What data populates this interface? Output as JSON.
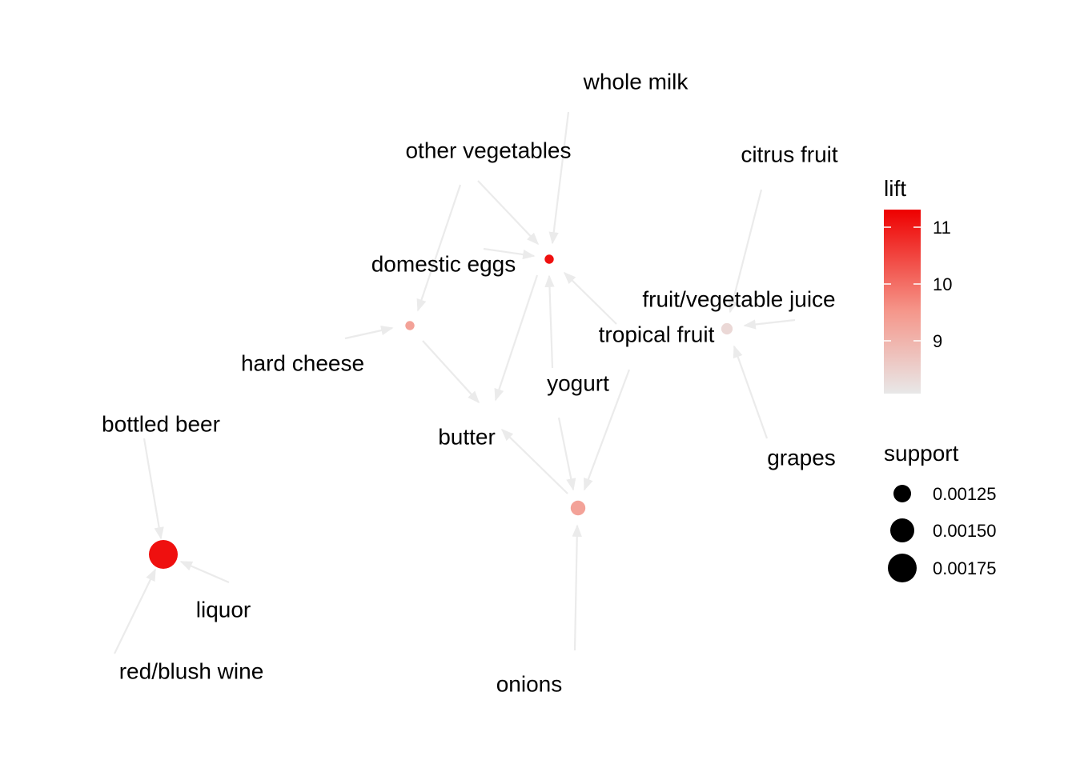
{
  "colors": {
    "background": "#ffffff",
    "edge": "#ebebeb",
    "lift_low": "#e8e8e8",
    "lift_high": "#ee0000",
    "label": "#000000"
  },
  "legend": {
    "lift_title": "lift",
    "lift_ticks": [
      "11",
      "10",
      "9"
    ],
    "support_title": "support",
    "support_ticks": [
      "0.00125",
      "0.00150",
      "0.00175"
    ]
  },
  "items": [
    {
      "id": "whole_milk",
      "label": "whole milk"
    },
    {
      "id": "other_vegetables",
      "label": "other vegetables"
    },
    {
      "id": "citrus_fruit",
      "label": "citrus fruit"
    },
    {
      "id": "domestic_eggs",
      "label": "domestic eggs"
    },
    {
      "id": "fruit_vegetable_juice",
      "label": "fruit/vegetable juice"
    },
    {
      "id": "tropical_fruit",
      "label": "tropical fruit"
    },
    {
      "id": "hard_cheese",
      "label": "hard cheese"
    },
    {
      "id": "yogurt",
      "label": "yogurt"
    },
    {
      "id": "bottled_beer",
      "label": "bottled beer"
    },
    {
      "id": "butter",
      "label": "butter"
    },
    {
      "id": "grapes",
      "label": "grapes"
    },
    {
      "id": "liquor",
      "label": "liquor"
    },
    {
      "id": "red_blush_wine",
      "label": "red/blush wine"
    },
    {
      "id": "onions",
      "label": "onions"
    }
  ],
  "rules": [
    {
      "id": "r1",
      "lhs": [
        "whole_milk",
        "other_vegetables",
        "domestic_eggs",
        "yogurt",
        "tropical_fruit"
      ],
      "rhs": [],
      "lift": 11.2,
      "support": 0.00105
    },
    {
      "id": "r2",
      "lhs": [
        "other_vegetables",
        "hard_cheese"
      ],
      "rhs": [
        "butter"
      ],
      "lift": 9.3,
      "support": 0.00105
    },
    {
      "id": "r3",
      "lhs": [
        "citrus_fruit",
        "fruit_vegetable_juice",
        "grapes"
      ],
      "rhs": [
        "tropical_fruit"
      ],
      "lift": 8.3,
      "support": 0.00115
    },
    {
      "id": "r4",
      "lhs": [
        "yogurt",
        "onions",
        "tropical_fruit"
      ],
      "rhs": [
        "butter"
      ],
      "lift": 9.3,
      "support": 0.0013
    },
    {
      "id": "r5",
      "lhs": [
        "bottled_beer",
        "liquor",
        "red_blush_wine"
      ],
      "rhs": [],
      "lift": 11.2,
      "support": 0.00193
    }
  ]
}
